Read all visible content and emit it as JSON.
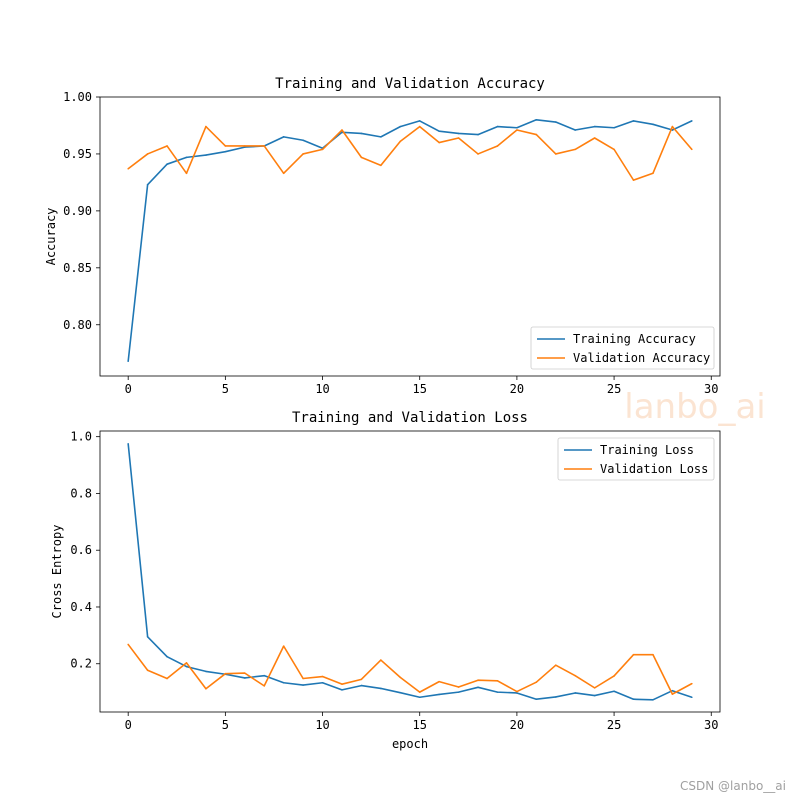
{
  "chart_data": [
    {
      "type": "line",
      "title": "Training and Validation Accuracy",
      "xlabel": "",
      "ylabel": "Accuracy",
      "xlim": [
        -1.45,
        30.45
      ],
      "ylim": [
        0.755,
        1.0
      ],
      "xticks": [
        0,
        5,
        10,
        15,
        20,
        25,
        30
      ],
      "yticks": [
        0.8,
        0.85,
        0.9,
        0.95,
        1.0
      ],
      "xtick_labels": [
        "0",
        "5",
        "10",
        "15",
        "20",
        "25",
        "30"
      ],
      "ytick_labels": [
        "0.80",
        "0.85",
        "0.90",
        "0.95",
        "1.00"
      ],
      "legend_position": "lower-right",
      "x": [
        0,
        1,
        2,
        3,
        4,
        5,
        6,
        7,
        8,
        9,
        10,
        11,
        12,
        13,
        14,
        15,
        16,
        17,
        18,
        19,
        20,
        21,
        22,
        23,
        24,
        25,
        26,
        27,
        28,
        29
      ],
      "series": [
        {
          "name": "Training Accuracy",
          "color": "#1f77b4",
          "values": [
            0.768,
            0.923,
            0.941,
            0.947,
            0.949,
            0.952,
            0.956,
            0.957,
            0.965,
            0.962,
            0.955,
            0.969,
            0.968,
            0.965,
            0.974,
            0.979,
            0.97,
            0.968,
            0.967,
            0.974,
            0.973,
            0.98,
            0.978,
            0.971,
            0.974,
            0.973,
            0.979,
            0.976,
            0.971,
            0.979
          ]
        },
        {
          "name": "Validation Accuracy",
          "color": "#ff7f0e",
          "values": [
            0.937,
            0.95,
            0.957,
            0.933,
            0.974,
            0.957,
            0.957,
            0.957,
            0.933,
            0.95,
            0.954,
            0.971,
            0.947,
            0.94,
            0.961,
            0.974,
            0.96,
            0.964,
            0.95,
            0.957,
            0.971,
            0.967,
            0.95,
            0.954,
            0.964,
            0.954,
            0.927,
            0.933,
            0.974,
            0.954
          ]
        }
      ]
    },
    {
      "type": "line",
      "title": "Training and Validation Loss",
      "xlabel": "epoch",
      "ylabel": "Cross Entropy",
      "xlim": [
        -1.45,
        30.45
      ],
      "ylim": [
        0.03,
        1.02
      ],
      "xticks": [
        0,
        5,
        10,
        15,
        20,
        25,
        30
      ],
      "yticks": [
        0.2,
        0.4,
        0.6,
        0.8,
        1.0
      ],
      "xtick_labels": [
        "0",
        "5",
        "10",
        "15",
        "20",
        "25",
        "30"
      ],
      "ytick_labels": [
        "0.2",
        "0.4",
        "0.6",
        "0.8",
        "1.0"
      ],
      "legend_position": "upper-right",
      "x": [
        0,
        1,
        2,
        3,
        4,
        5,
        6,
        7,
        8,
        9,
        10,
        11,
        12,
        13,
        14,
        15,
        16,
        17,
        18,
        19,
        20,
        21,
        22,
        23,
        24,
        25,
        26,
        27,
        28,
        29
      ],
      "series": [
        {
          "name": "Training Loss",
          "color": "#1f77b4",
          "values": [
            0.975,
            0.295,
            0.225,
            0.19,
            0.173,
            0.163,
            0.15,
            0.158,
            0.133,
            0.125,
            0.133,
            0.108,
            0.123,
            0.113,
            0.098,
            0.082,
            0.092,
            0.1,
            0.117,
            0.1,
            0.097,
            0.075,
            0.083,
            0.097,
            0.088,
            0.103,
            0.075,
            0.073,
            0.105,
            0.082
          ]
        },
        {
          "name": "Validation Loss",
          "color": "#ff7f0e",
          "values": [
            0.268,
            0.177,
            0.148,
            0.203,
            0.112,
            0.165,
            0.167,
            0.122,
            0.262,
            0.148,
            0.155,
            0.128,
            0.145,
            0.213,
            0.152,
            0.1,
            0.137,
            0.118,
            0.142,
            0.14,
            0.102,
            0.135,
            0.195,
            0.158,
            0.115,
            0.157,
            0.232,
            0.232,
            0.093,
            0.13
          ]
        }
      ]
    }
  ],
  "watermark": {
    "overlay": "lanbo_ai",
    "footer": "CSDN @lanbo__ai"
  }
}
